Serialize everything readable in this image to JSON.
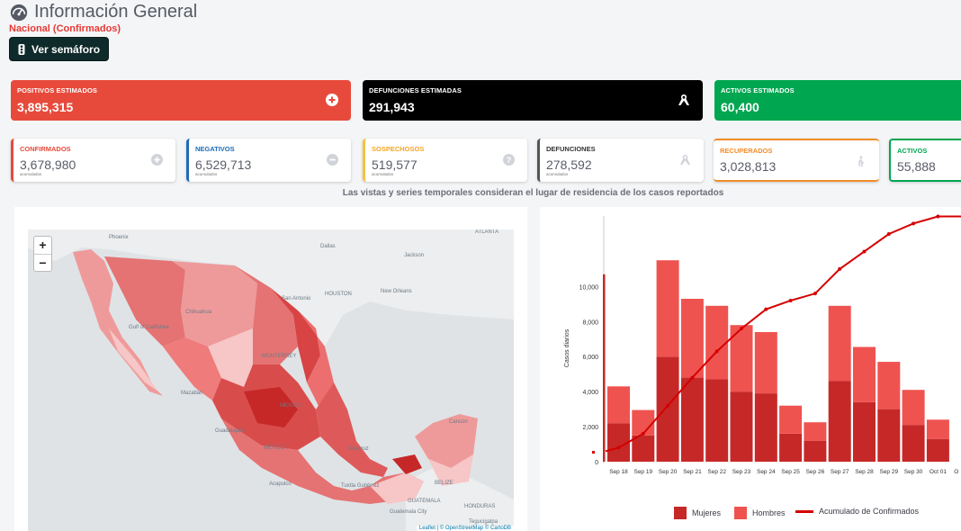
{
  "header": {
    "title": "Información General",
    "subtitle": "Nacional (Confirmados)",
    "semaforo_button": "Ver semáforo"
  },
  "big_cards": [
    {
      "label": "POSITIVOS ESTIMADOS",
      "value": "3,895,315",
      "color": "#e74a3b",
      "icon": "plus-circle-icon"
    },
    {
      "label": "DEFUNCIONES ESTIMADAS",
      "value": "291,943",
      "color": "#000000",
      "icon": "ribbon-icon"
    },
    {
      "label": "ACTIVOS ESTIMADOS",
      "value": "60,400",
      "color": "#00a650",
      "icon": ""
    }
  ],
  "small_cards": [
    {
      "label": "CONFIRMADOS",
      "value": "3,678,980",
      "sub": "acumulados",
      "color": "#e74a3b",
      "icon": "plus-circle-icon"
    },
    {
      "label": "NEGATIVOS",
      "value": "6,529,713",
      "sub": "acumulados",
      "color": "#1e6bb8",
      "icon": "minus-circle-icon"
    },
    {
      "label": "SOSPECHOSOS",
      "value": "519,577",
      "sub": "acumulados",
      "color": "#f6a623",
      "icon": "question-circle-icon"
    },
    {
      "label": "DEFUNCIONES",
      "value": "278,592",
      "sub": "acumulados",
      "color": "#333333",
      "icon": "ribbon-icon"
    },
    {
      "label": "RECUPERADOS",
      "value": "3,028,813",
      "sub": "",
      "color": "#f28c28",
      "icon": "walking-person-icon"
    },
    {
      "label": "ACTIVOS",
      "value": "55,888",
      "sub": "",
      "color": "#00a650",
      "icon": ""
    }
  ],
  "note": "Las vistas y series temporales consideran el lugar de residencia de los casos reportados",
  "map": {
    "zoom_in": "+",
    "zoom_out": "−",
    "attribution": "Leaflet | © OpenStreetMap © CartoDB",
    "labels": [
      "Phoenix",
      "Dallas",
      "Jackson",
      "ATLANTA",
      "HOUSTON",
      "San Antonio",
      "New Orleans",
      "Gulf of California",
      "Chihuahua",
      "MONTERREY",
      "Mazatlán",
      "MEXICO",
      "Guadalajara",
      "MÉXICO",
      "Veracruz",
      "Cancún",
      "Acapulco",
      "Tuxtla Gutiérrez",
      "BELIZE",
      "GUATEMALA",
      "HONDURAS",
      "Guatemala City",
      "Tegucigalpa"
    ]
  },
  "chart_data": {
    "type": "bar",
    "categories": [
      "Sep 18",
      "Sep 19",
      "Sep 20",
      "Sep 21",
      "Sep 22",
      "Sep 23",
      "Sep 24",
      "Sep 25",
      "Sep 26",
      "Sep 27",
      "Sep 28",
      "Sep 29",
      "Sep 30",
      "Oct 01"
    ],
    "series": [
      {
        "name": "Mujeres",
        "values": [
          2200,
          1500,
          6000,
          4800,
          4700,
          4000,
          3900,
          1600,
          1200,
          4600,
          3400,
          3000,
          2100,
          1300
        ],
        "color": "#c62828"
      },
      {
        "name": "Hombres",
        "values": [
          2100,
          1450,
          5500,
          4500,
          4200,
          3800,
          3500,
          1600,
          1050,
          4300,
          3150,
          2700,
          2000,
          1100
        ],
        "color": "#ef5350"
      },
      {
        "name": "Acumulado de Confirmados",
        "type": "line",
        "values": [
          800,
          1600,
          3200,
          4800,
          6300,
          7600,
          8700,
          9200,
          9600,
          11000,
          12000,
          13000,
          13600,
          14000
        ],
        "color": "#d50000"
      }
    ],
    "ylabel": "Casos diarios",
    "yticks": [
      "0",
      "2,000",
      "4,000",
      "6,000",
      "8,000",
      "10,000"
    ],
    "ylim": [
      0,
      13000
    ],
    "partial_left_bar": 10700,
    "legend": [
      "Mujeres",
      "Hombres",
      "Acumulado de Confirmados"
    ],
    "legend_position": "bottom"
  }
}
